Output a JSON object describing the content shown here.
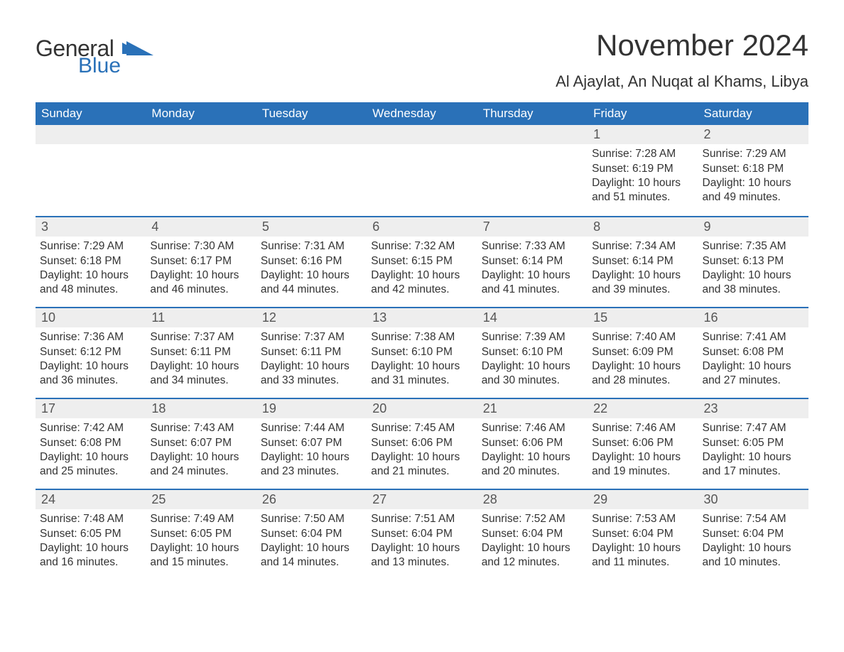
{
  "logo": {
    "word1": "General",
    "word2": "Blue"
  },
  "title": "November 2024",
  "location": "Al Ajaylat, An Nuqat al Khams, Libya",
  "colors": {
    "header_bg": "#2a71b8",
    "header_text": "#ffffff",
    "daynum_bg": "#eeeeee",
    "week_border": "#2a71b8",
    "body_text": "#333333",
    "page_bg": "#ffffff"
  },
  "day_names": [
    "Sunday",
    "Monday",
    "Tuesday",
    "Wednesday",
    "Thursday",
    "Friday",
    "Saturday"
  ],
  "weeks": [
    [
      null,
      null,
      null,
      null,
      null,
      {
        "n": "1",
        "sunrise": "Sunrise: 7:28 AM",
        "sunset": "Sunset: 6:19 PM",
        "daylight": "Daylight: 10 hours and 51 minutes."
      },
      {
        "n": "2",
        "sunrise": "Sunrise: 7:29 AM",
        "sunset": "Sunset: 6:18 PM",
        "daylight": "Daylight: 10 hours and 49 minutes."
      }
    ],
    [
      {
        "n": "3",
        "sunrise": "Sunrise: 7:29 AM",
        "sunset": "Sunset: 6:18 PM",
        "daylight": "Daylight: 10 hours and 48 minutes."
      },
      {
        "n": "4",
        "sunrise": "Sunrise: 7:30 AM",
        "sunset": "Sunset: 6:17 PM",
        "daylight": "Daylight: 10 hours and 46 minutes."
      },
      {
        "n": "5",
        "sunrise": "Sunrise: 7:31 AM",
        "sunset": "Sunset: 6:16 PM",
        "daylight": "Daylight: 10 hours and 44 minutes."
      },
      {
        "n": "6",
        "sunrise": "Sunrise: 7:32 AM",
        "sunset": "Sunset: 6:15 PM",
        "daylight": "Daylight: 10 hours and 42 minutes."
      },
      {
        "n": "7",
        "sunrise": "Sunrise: 7:33 AM",
        "sunset": "Sunset: 6:14 PM",
        "daylight": "Daylight: 10 hours and 41 minutes."
      },
      {
        "n": "8",
        "sunrise": "Sunrise: 7:34 AM",
        "sunset": "Sunset: 6:14 PM",
        "daylight": "Daylight: 10 hours and 39 minutes."
      },
      {
        "n": "9",
        "sunrise": "Sunrise: 7:35 AM",
        "sunset": "Sunset: 6:13 PM",
        "daylight": "Daylight: 10 hours and 38 minutes."
      }
    ],
    [
      {
        "n": "10",
        "sunrise": "Sunrise: 7:36 AM",
        "sunset": "Sunset: 6:12 PM",
        "daylight": "Daylight: 10 hours and 36 minutes."
      },
      {
        "n": "11",
        "sunrise": "Sunrise: 7:37 AM",
        "sunset": "Sunset: 6:11 PM",
        "daylight": "Daylight: 10 hours and 34 minutes."
      },
      {
        "n": "12",
        "sunrise": "Sunrise: 7:37 AM",
        "sunset": "Sunset: 6:11 PM",
        "daylight": "Daylight: 10 hours and 33 minutes."
      },
      {
        "n": "13",
        "sunrise": "Sunrise: 7:38 AM",
        "sunset": "Sunset: 6:10 PM",
        "daylight": "Daylight: 10 hours and 31 minutes."
      },
      {
        "n": "14",
        "sunrise": "Sunrise: 7:39 AM",
        "sunset": "Sunset: 6:10 PM",
        "daylight": "Daylight: 10 hours and 30 minutes."
      },
      {
        "n": "15",
        "sunrise": "Sunrise: 7:40 AM",
        "sunset": "Sunset: 6:09 PM",
        "daylight": "Daylight: 10 hours and 28 minutes."
      },
      {
        "n": "16",
        "sunrise": "Sunrise: 7:41 AM",
        "sunset": "Sunset: 6:08 PM",
        "daylight": "Daylight: 10 hours and 27 minutes."
      }
    ],
    [
      {
        "n": "17",
        "sunrise": "Sunrise: 7:42 AM",
        "sunset": "Sunset: 6:08 PM",
        "daylight": "Daylight: 10 hours and 25 minutes."
      },
      {
        "n": "18",
        "sunrise": "Sunrise: 7:43 AM",
        "sunset": "Sunset: 6:07 PM",
        "daylight": "Daylight: 10 hours and 24 minutes."
      },
      {
        "n": "19",
        "sunrise": "Sunrise: 7:44 AM",
        "sunset": "Sunset: 6:07 PM",
        "daylight": "Daylight: 10 hours and 23 minutes."
      },
      {
        "n": "20",
        "sunrise": "Sunrise: 7:45 AM",
        "sunset": "Sunset: 6:06 PM",
        "daylight": "Daylight: 10 hours and 21 minutes."
      },
      {
        "n": "21",
        "sunrise": "Sunrise: 7:46 AM",
        "sunset": "Sunset: 6:06 PM",
        "daylight": "Daylight: 10 hours and 20 minutes."
      },
      {
        "n": "22",
        "sunrise": "Sunrise: 7:46 AM",
        "sunset": "Sunset: 6:06 PM",
        "daylight": "Daylight: 10 hours and 19 minutes."
      },
      {
        "n": "23",
        "sunrise": "Sunrise: 7:47 AM",
        "sunset": "Sunset: 6:05 PM",
        "daylight": "Daylight: 10 hours and 17 minutes."
      }
    ],
    [
      {
        "n": "24",
        "sunrise": "Sunrise: 7:48 AM",
        "sunset": "Sunset: 6:05 PM",
        "daylight": "Daylight: 10 hours and 16 minutes."
      },
      {
        "n": "25",
        "sunrise": "Sunrise: 7:49 AM",
        "sunset": "Sunset: 6:05 PM",
        "daylight": "Daylight: 10 hours and 15 minutes."
      },
      {
        "n": "26",
        "sunrise": "Sunrise: 7:50 AM",
        "sunset": "Sunset: 6:04 PM",
        "daylight": "Daylight: 10 hours and 14 minutes."
      },
      {
        "n": "27",
        "sunrise": "Sunrise: 7:51 AM",
        "sunset": "Sunset: 6:04 PM",
        "daylight": "Daylight: 10 hours and 13 minutes."
      },
      {
        "n": "28",
        "sunrise": "Sunrise: 7:52 AM",
        "sunset": "Sunset: 6:04 PM",
        "daylight": "Daylight: 10 hours and 12 minutes."
      },
      {
        "n": "29",
        "sunrise": "Sunrise: 7:53 AM",
        "sunset": "Sunset: 6:04 PM",
        "daylight": "Daylight: 10 hours and 11 minutes."
      },
      {
        "n": "30",
        "sunrise": "Sunrise: 7:54 AM",
        "sunset": "Sunset: 6:04 PM",
        "daylight": "Daylight: 10 hours and 10 minutes."
      }
    ]
  ]
}
